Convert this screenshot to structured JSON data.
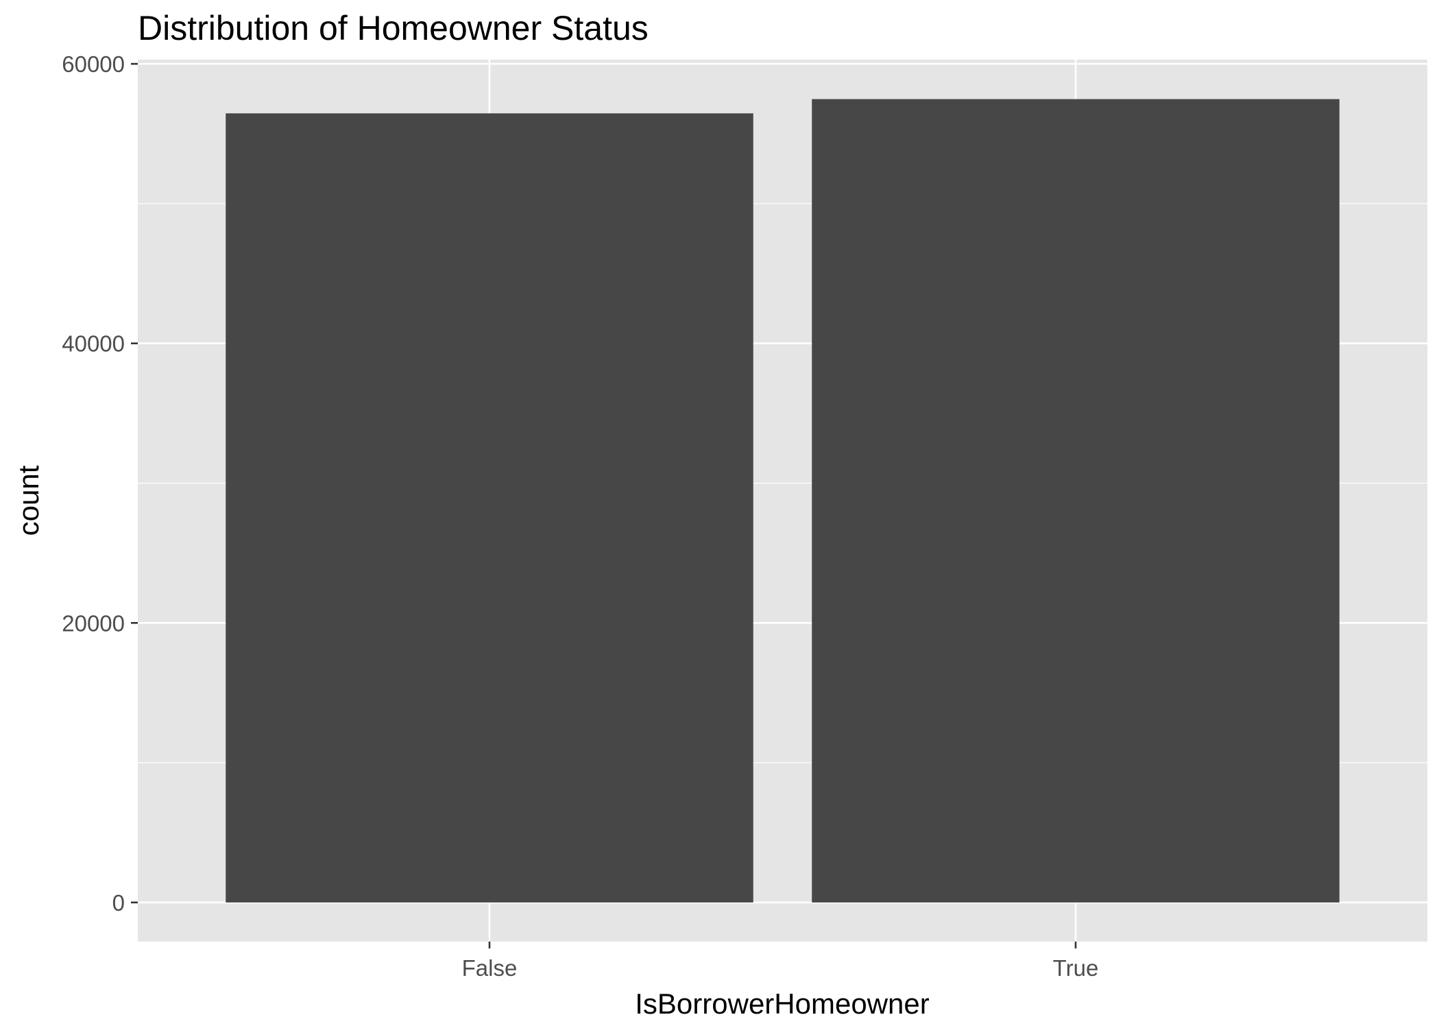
{
  "chart_data": {
    "type": "bar",
    "title": "Distribution of Homeowner Status",
    "xlabel": "IsBorrowerHomeowner",
    "ylabel": "count",
    "categories": [
      "False",
      "True"
    ],
    "values": [
      56459,
      57478
    ],
    "ylim": [
      -2800,
      60300
    ],
    "yticks": [
      0,
      20000,
      40000,
      60000
    ],
    "ytick_labels": [
      "0",
      "20000",
      "40000",
      "60000"
    ],
    "grid": true,
    "legend": "none",
    "colors": {
      "panel_background": "#e5e5e5",
      "grid": "#ffffff",
      "bar_fill": "#474747",
      "tick_text": "#4d4d4d",
      "axis_ticks": "#333333"
    }
  }
}
